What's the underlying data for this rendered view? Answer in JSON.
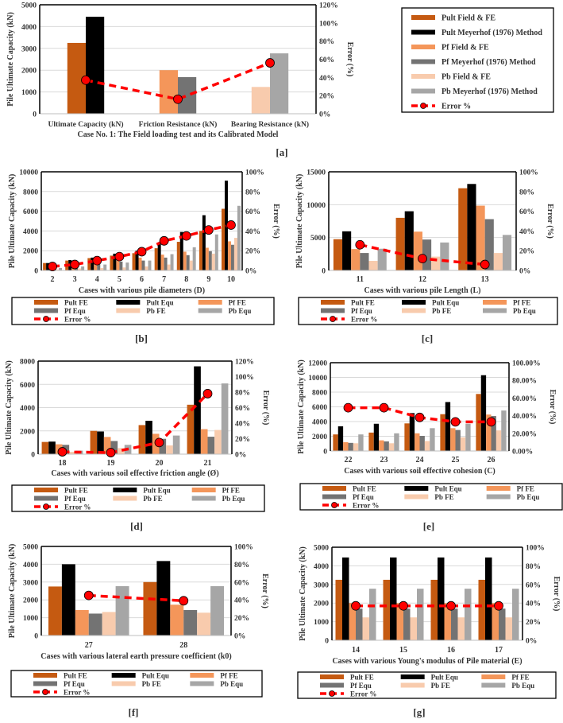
{
  "colors": {
    "pult_fe": "#c55a11",
    "pult_equ": "#000000",
    "pf_fe": "#f4965a",
    "pf_equ": "#737373",
    "pb_fe": "#f8cbad",
    "pb_equ": "#a6a6a6",
    "error": "#ff0000",
    "grid": "#d9d9d9"
  },
  "chart_data": [
    {
      "type": "bar",
      "panel_label": "[a]",
      "title": "",
      "xlabel": "Case No. 1: The Field loading test and its Calibrated Model",
      "ylabel": "Pile Ultimate Capacity (kN)",
      "y2label": "Error (%)",
      "ylim": [
        0,
        5000
      ],
      "yticks": [
        0,
        1000,
        2000,
        3000,
        4000,
        5000
      ],
      "y2lim": [
        0,
        120
      ],
      "y2ticks": [
        "0%",
        "20%",
        "40%",
        "60%",
        "80%",
        "100%",
        "120%"
      ],
      "categories": [
        "Ultimate Capacity (kN)",
        "Friction Resistance (kN)",
        "Bearing Resistance (kN)"
      ],
      "legend_placement": "right",
      "series": [
        {
          "name": "Pult Field & FE",
          "color_key": "pult_fe",
          "values": [
            3250,
            null,
            null
          ]
        },
        {
          "name": "Pult Meyerhof (1976) Method",
          "color_key": "pult_equ",
          "values": [
            4450,
            null,
            null
          ]
        },
        {
          "name": "Pf Field & FE",
          "color_key": "pf_fe",
          "values": [
            null,
            2000,
            null
          ]
        },
        {
          "name": "Pf Meyerhof (1976) Method",
          "color_key": "pf_equ",
          "values": [
            null,
            1680,
            null
          ]
        },
        {
          "name": "Pb Field & FE",
          "color_key": "pb_fe",
          "values": [
            null,
            null,
            1230
          ]
        },
        {
          "name": "Pb Meyerhof (1976) Method",
          "color_key": "pb_equ",
          "values": [
            null,
            null,
            2770
          ]
        }
      ],
      "error": {
        "name": "Error %",
        "values": [
          37,
          16,
          56
        ]
      }
    },
    {
      "type": "bar",
      "panel_label": "[b]",
      "xlabel": "Cases with various pile diameters (D)",
      "ylabel": "Pile Ultimate Capacity (kN)",
      "y2label": "Error (%)",
      "ylim": [
        0,
        10000
      ],
      "yticks": [
        0,
        2000,
        4000,
        6000,
        8000,
        10000
      ],
      "y2lim": [
        0,
        100
      ],
      "y2ticks": [
        "0%",
        "20%",
        "40%",
        "60%",
        "80%",
        "100%"
      ],
      "categories": [
        "2",
        "3",
        "4",
        "5",
        "6",
        "7",
        "8",
        "9",
        "10"
      ],
      "legend_placement": "bottom",
      "series": [
        {
          "name": "Pult FE",
          "color_key": "pult_fe",
          "values": [
            750,
            1000,
            1250,
            1500,
            1750,
            2250,
            2900,
            4000,
            6250
          ]
        },
        {
          "name": "Pult Equ",
          "color_key": "pult_equ",
          "values": [
            750,
            1050,
            1300,
            1700,
            2000,
            2800,
            3900,
            5600,
            9100
          ]
        },
        {
          "name": "Pf FE",
          "color_key": "pf_fe",
          "values": [
            500,
            700,
            850,
            1000,
            1300,
            1600,
            1900,
            2300,
            2950
          ]
        },
        {
          "name": "Pf Equ",
          "color_key": "pf_equ",
          "values": [
            600,
            700,
            700,
            900,
            1000,
            1300,
            1550,
            1950,
            2600
          ]
        },
        {
          "name": "Pb FE",
          "color_key": "pb_fe",
          "values": [
            100,
            200,
            250,
            300,
            400,
            600,
            1000,
            1700,
            3300
          ]
        },
        {
          "name": "Pb Equ",
          "color_key": "pb_equ",
          "values": [
            250,
            400,
            600,
            800,
            1000,
            1650,
            2350,
            3650,
            6550
          ]
        }
      ],
      "error": {
        "name": "Error %",
        "values": [
          4,
          6,
          10,
          14,
          19,
          30,
          35,
          41,
          46
        ]
      }
    },
    {
      "type": "bar",
      "panel_label": "[c]",
      "xlabel": "Cases with various pile Length (L)",
      "ylabel": "Pile Ultimate Capacity (kN)",
      "y2label": "Error (%)",
      "ylim": [
        0,
        15000
      ],
      "yticks": [
        0,
        5000,
        10000,
        15000
      ],
      "y2lim": [
        0,
        100
      ],
      "y2ticks": [
        "0%",
        "20%",
        "40%",
        "60%",
        "80%",
        "100%"
      ],
      "categories": [
        "11",
        "12",
        "13"
      ],
      "legend_placement": "bottom",
      "series": [
        {
          "name": "Pult FE",
          "color_key": "pult_fe",
          "values": [
            4750,
            8000,
            12500
          ]
        },
        {
          "name": "Pult Equ",
          "color_key": "pult_equ",
          "values": [
            5950,
            9000,
            13150
          ]
        },
        {
          "name": "Pf FE",
          "color_key": "pf_fe",
          "values": [
            3250,
            5900,
            9850
          ]
        },
        {
          "name": "Pf Equ",
          "color_key": "pf_equ",
          "values": [
            2650,
            4700,
            7800
          ]
        },
        {
          "name": "Pb FE",
          "color_key": "pb_fe",
          "values": [
            1450,
            2100,
            2650
          ]
        },
        {
          "name": "Pb Equ",
          "color_key": "pb_equ",
          "values": [
            3300,
            4250,
            5400
          ]
        }
      ],
      "error": {
        "name": "Error %",
        "values": [
          26,
          12,
          6
        ]
      }
    },
    {
      "type": "bar",
      "panel_label": "[d]",
      "xlabel": "Cases with various soil effective friction angle (Ø)",
      "ylabel": "Pile Ultimate Capacity (kN)",
      "y2label": "Error (%)",
      "ylim": [
        0,
        8000
      ],
      "yticks": [
        0,
        2000,
        4000,
        6000,
        8000
      ],
      "y2lim": [
        0,
        120
      ],
      "y2ticks": [
        "0%",
        "20%",
        "40%",
        "60%",
        "80%",
        "100%",
        "120%"
      ],
      "categories": [
        "18",
        "19",
        "20",
        "21"
      ],
      "legend_placement": "bottom",
      "series": [
        {
          "name": "Pult FE",
          "color_key": "pult_fe",
          "values": [
            1050,
            2000,
            2500,
            4250
          ]
        },
        {
          "name": "Pult Equ",
          "color_key": "pult_equ",
          "values": [
            1080,
            1950,
            2870,
            7550
          ]
        },
        {
          "name": "Pf FE",
          "color_key": "pf_fe",
          "values": [
            850,
            1480,
            1750,
            2150
          ]
        },
        {
          "name": "Pf Equ",
          "color_key": "pf_equ",
          "values": [
            800,
            1130,
            1320,
            1500
          ]
        },
        {
          "name": "Pb FE",
          "color_key": "pb_fe",
          "values": [
            200,
            520,
            750,
            2080
          ]
        },
        {
          "name": "Pb Equ",
          "color_key": "pb_equ",
          "values": [
            300,
            800,
            1600,
            6080
          ]
        }
      ],
      "error": {
        "name": "Error %",
        "values": [
          3,
          2,
          15,
          78
        ]
      }
    },
    {
      "type": "bar",
      "panel_label": "[e]",
      "xlabel": "Cases with various soil effective cohesion (C)",
      "ylabel": "Pile Ultimate Capacity (kN)",
      "y2label": "Error (%)",
      "ylim": [
        0,
        12000
      ],
      "yticks": [
        0,
        2000,
        4000,
        6000,
        8000,
        10000,
        12000
      ],
      "y2lim": [
        0,
        100
      ],
      "y2ticks": [
        "0.00%",
        "20.00%",
        "40.00%",
        "60.00%",
        "80.00%",
        "100.00%"
      ],
      "categories": [
        "22",
        "23",
        "24",
        "25",
        "26"
      ],
      "legend_placement": "bottom",
      "series": [
        {
          "name": "Pult FE",
          "color_key": "pult_fe",
          "values": [
            2250,
            2500,
            3750,
            5000,
            7750
          ]
        },
        {
          "name": "Pult Equ",
          "color_key": "pult_equ",
          "values": [
            3350,
            3700,
            5150,
            6650,
            10300
          ]
        },
        {
          "name": "Pf FE",
          "color_key": "pf_fe",
          "values": [
            1200,
            1450,
            2400,
            3100,
            4950
          ]
        },
        {
          "name": "Pf Equ",
          "color_key": "pf_equ",
          "values": [
            1100,
            1300,
            2050,
            2850,
            4750
          ]
        },
        {
          "name": "Pb FE",
          "color_key": "pb_fe",
          "values": [
            1050,
            1050,
            1350,
            1850,
            2800
          ]
        },
        {
          "name": "Pb Equ",
          "color_key": "pb_equ",
          "values": [
            2250,
            2400,
            3100,
            3700,
            5500
          ]
        }
      ],
      "error": {
        "name": "Error %",
        "values": [
          49,
          49,
          38,
          33,
          33
        ]
      }
    },
    {
      "type": "bar",
      "panel_label": "[f]",
      "xlabel": "Cases with various lateral earth pressure coefficient (k0)",
      "ylabel": "Pile Ultimate Capacity (kN)",
      "y2label": "Error (%)",
      "ylim": [
        0,
        5000
      ],
      "yticks": [
        0,
        1000,
        2000,
        3000,
        4000,
        5000
      ],
      "y2lim": [
        0,
        100
      ],
      "y2ticks": [
        "0%",
        "20%",
        "40%",
        "60%",
        "80%",
        "100%"
      ],
      "categories": [
        "27",
        "28"
      ],
      "legend_placement": "bottom",
      "series": [
        {
          "name": "Pult FE",
          "color_key": "pult_fe",
          "values": [
            2750,
            3000
          ]
        },
        {
          "name": "Pult Equ",
          "color_key": "pult_equ",
          "values": [
            4000,
            4180
          ]
        },
        {
          "name": "Pf FE",
          "color_key": "pf_fe",
          "values": [
            1430,
            1730
          ]
        },
        {
          "name": "Pf Equ",
          "color_key": "pf_equ",
          "values": [
            1230,
            1430
          ]
        },
        {
          "name": "Pb FE",
          "color_key": "pb_fe",
          "values": [
            1320,
            1280
          ]
        },
        {
          "name": "Pb Equ",
          "color_key": "pb_equ",
          "values": [
            2770,
            2770
          ]
        }
      ],
      "error": {
        "name": "Error %",
        "values": [
          45,
          39
        ]
      }
    },
    {
      "type": "bar",
      "panel_label": "[g]",
      "xlabel": "Cases with various Young's modulus of Pile material (E)",
      "ylabel": "Pile Ultimate Capacity (kN)",
      "y2label": "Error (%)",
      "ylim": [
        0,
        5000
      ],
      "yticks": [
        0,
        1000,
        2000,
        3000,
        4000,
        5000
      ],
      "y2lim": [
        0,
        100
      ],
      "y2ticks": [
        "0%",
        "20%",
        "40%",
        "60%",
        "80%",
        "100%"
      ],
      "categories": [
        "14",
        "15",
        "16",
        "17"
      ],
      "legend_placement": "bottom",
      "series": [
        {
          "name": "Pult FE",
          "color_key": "pult_fe",
          "values": [
            3250,
            3250,
            3250,
            3250
          ]
        },
        {
          "name": "Pult Equ",
          "color_key": "pult_equ",
          "values": [
            4450,
            4450,
            4450,
            4450
          ]
        },
        {
          "name": "Pf FE",
          "color_key": "pf_fe",
          "values": [
            2000,
            2000,
            2000,
            2000
          ]
        },
        {
          "name": "Pf Equ",
          "color_key": "pf_equ",
          "values": [
            1700,
            1700,
            1700,
            1700
          ]
        },
        {
          "name": "Pb FE",
          "color_key": "pb_fe",
          "values": [
            1230,
            1230,
            1230,
            1230
          ]
        },
        {
          "name": "Pb Equ",
          "color_key": "pb_equ",
          "values": [
            2770,
            2770,
            2770,
            2770
          ]
        }
      ],
      "error": {
        "name": "Error %",
        "values": [
          37,
          37,
          37,
          37
        ]
      }
    }
  ]
}
